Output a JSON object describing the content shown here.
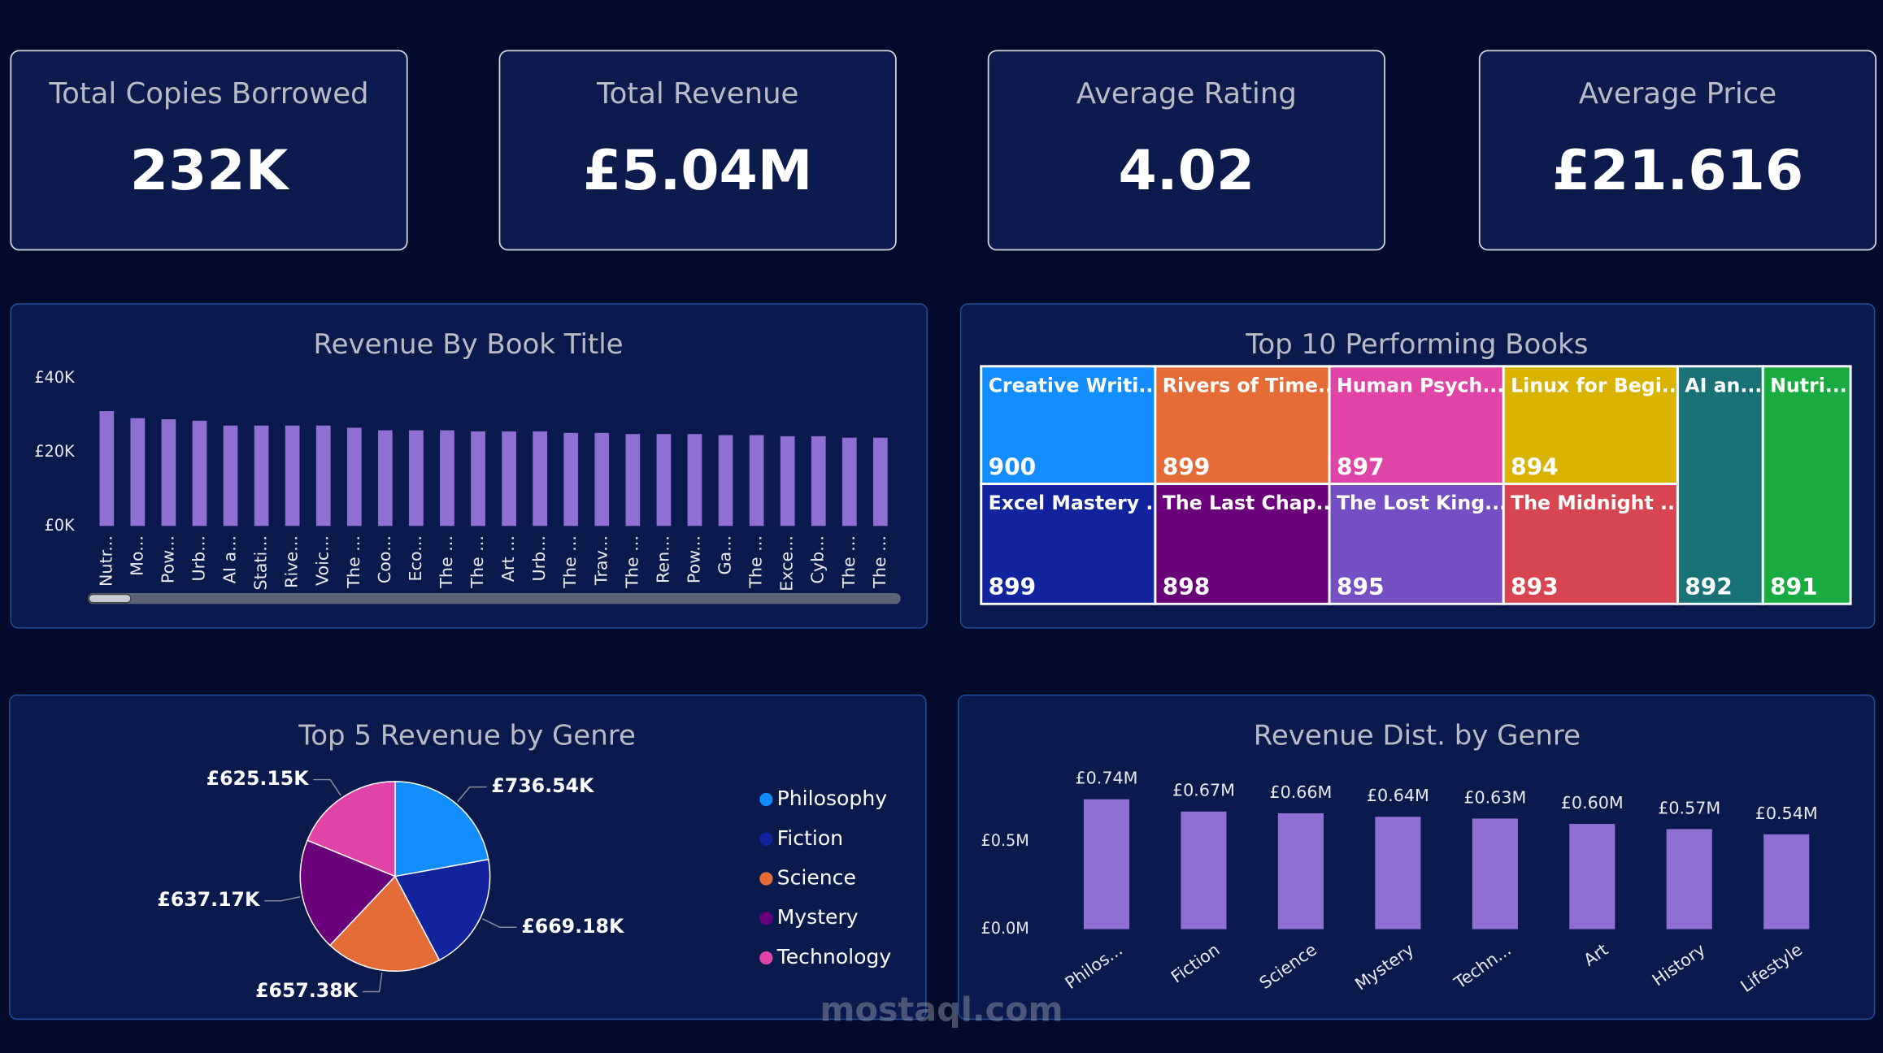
{
  "kpis": [
    {
      "label": "Total Copies Borrowed",
      "value": "232K"
    },
    {
      "label": "Total Revenue",
      "value": "£5.04M"
    },
    {
      "label": "Average Rating",
      "value": "4.02"
    },
    {
      "label": "Average Price",
      "value": "£21.616"
    }
  ],
  "chart_data": [
    {
      "type": "bar",
      "title": "Revenue By Book Title",
      "color": "#8f6fd1",
      "categories": [
        "Nutr...",
        "Mo...",
        "Pow...",
        "Urb...",
        "AI a...",
        "Stati...",
        "Rive...",
        "Voic...",
        "The ...",
        "Coo...",
        "Eco...",
        "The ...",
        "The ...",
        "Art ...",
        "Urb...",
        "The ...",
        "Trav...",
        "The ...",
        "Ren...",
        "Pow...",
        "Ga...",
        "The ...",
        "Exce...",
        "Cyb...",
        "The ...",
        "The ..."
      ],
      "values": [
        31100,
        29200,
        28900,
        28500,
        27200,
        27200,
        27200,
        27200,
        26600,
        25900,
        25900,
        25900,
        25600,
        25600,
        25600,
        25200,
        25200,
        24900,
        24900,
        24900,
        24600,
        24600,
        24300,
        24300,
        23900,
        23900
      ],
      "ylim": [
        0,
        40000
      ],
      "yticks": [
        {
          "value": 0,
          "label": "£0K"
        },
        {
          "value": 20000,
          "label": "£20K"
        },
        {
          "value": 40000,
          "label": "£40K"
        }
      ]
    },
    {
      "type": "treemap",
      "title": "Top 10 Performing Books",
      "categories": [
        "Creative Writi...",
        "Excel Mastery ...",
        "Rivers of Time...",
        "The Last Chap...",
        "Human Psych...",
        "The Lost King...",
        "Linux for Begi...",
        "The Midnight ...",
        "AI an...",
        "Nutri..."
      ],
      "values": [
        900,
        899,
        899,
        898,
        897,
        895,
        894,
        893,
        892,
        891
      ],
      "colors": [
        "#118dff",
        "#12239e",
        "#e66c37",
        "#6b007b",
        "#e044a7",
        "#744ec2",
        "#d9b300",
        "#d64550",
        "#197278",
        "#1aab40"
      ]
    },
    {
      "type": "pie",
      "title": "Top 5 Revenue by Genre",
      "categories": [
        "Philosophy",
        "Fiction",
        "Science",
        "Mystery",
        "Technology"
      ],
      "values": [
        736540,
        669180,
        657380,
        637170,
        625150
      ],
      "value_labels": [
        "£736.54K",
        "£669.18K",
        "£657.38K",
        "£637.17K",
        "£625.15K"
      ],
      "colors": [
        "#118dff",
        "#12239e",
        "#e66c37",
        "#6b007b",
        "#e044a7"
      ]
    },
    {
      "type": "bar",
      "title": "Revenue Dist. by Genre",
      "color": "#8f6fd1",
      "categories": [
        "Philos...",
        "Fiction",
        "Science",
        "Mystery",
        "Techn...",
        "Art",
        "History",
        "Lifestyle"
      ],
      "values": [
        740000,
        670000,
        660000,
        640000,
        630000,
        600000,
        570000,
        540000
      ],
      "value_labels": [
        "£0.74M",
        "£0.67M",
        "£0.66M",
        "£0.64M",
        "£0.63M",
        "£0.60M",
        "£0.57M",
        "£0.54M"
      ],
      "ylim": [
        0,
        800000
      ],
      "yticks": [
        {
          "value": 0,
          "label": "£0.0M"
        },
        {
          "value": 500000,
          "label": "£0.5M"
        }
      ]
    }
  ],
  "watermark": "mostaql.com"
}
